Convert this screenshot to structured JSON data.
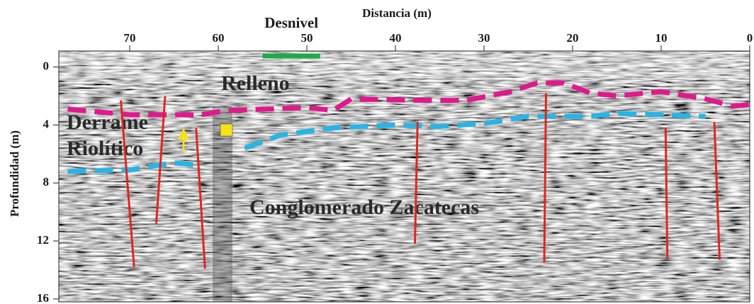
{
  "chart_data": {
    "type": "line",
    "title": "Distancia (m)",
    "y_label": "Profundidad (m)",
    "xlim": [
      78,
      0
    ],
    "xticks": [
      70,
      60,
      50,
      40,
      30,
      20,
      10,
      0
    ],
    "ylim": [
      -1.1,
      16.2
    ],
    "yticks": [
      0,
      4,
      8,
      12,
      16
    ],
    "interfaces": [
      {
        "color": "#e0198c",
        "x": [
          77,
          70,
          62,
          59,
          50,
          47,
          45,
          38,
          32,
          27,
          24,
          21,
          18,
          15,
          10,
          5,
          2,
          0
        ],
        "values": [
          2.9,
          3.3,
          3.3,
          3.0,
          2.8,
          3.0,
          2.2,
          2.3,
          2.3,
          1.7,
          1.1,
          1.1,
          1.8,
          2.0,
          1.7,
          2.2,
          2.7,
          2.6
        ]
      },
      {
        "color": "#29b4e6",
        "x": [
          77,
          70,
          65,
          62,
          60,
          57,
          53,
          47,
          40,
          35,
          30,
          25,
          18,
          15,
          10,
          5
        ],
        "values": [
          7.2,
          7.1,
          6.6,
          6.8,
          null,
          5.6,
          4.7,
          4.2,
          4.0,
          4.1,
          3.9,
          3.4,
          3.4,
          3.2,
          3.3,
          3.4
        ]
      }
    ],
    "faults": {
      "color": "#e0261f",
      "lines": [
        {
          "x": [
            71,
            69.5
          ],
          "values": [
            2.3,
            13.8
          ]
        },
        {
          "x": [
            66,
            67
          ],
          "values": [
            2.0,
            10.8
          ]
        },
        {
          "x": [
            62.5,
            61.5
          ],
          "values": [
            4.2,
            13.9
          ]
        },
        {
          "x": [
            37.5,
            37.8
          ],
          "values": [
            3.8,
            12.2
          ]
        },
        {
          "x": [
            23,
            23.2
          ],
          "values": [
            1.8,
            13.5
          ]
        },
        {
          "x": [
            9.5,
            9.3
          ],
          "values": [
            4.2,
            13.2
          ]
        },
        {
          "x": [
            4,
            3.4
          ],
          "values": [
            3.8,
            13.3
          ]
        }
      ]
    },
    "desnivel": {
      "label": "Desnivel",
      "color": "#1faa4a",
      "x": [
        55,
        48.5
      ]
    },
    "annotations": [
      "Relleno",
      "Derrame",
      "Riolítico",
      "Conglomerado Zacatecas"
    ]
  }
}
